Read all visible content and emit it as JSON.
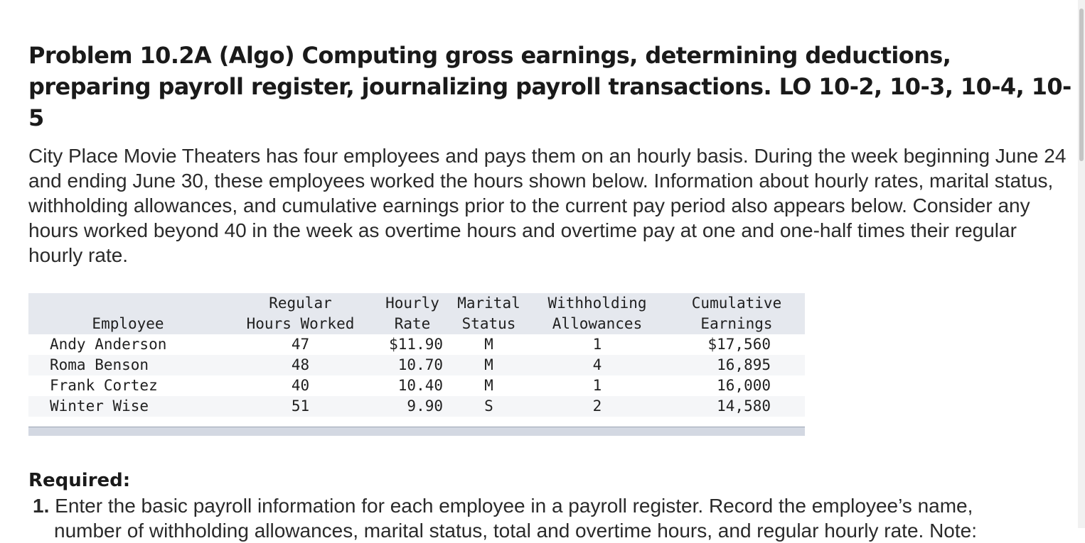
{
  "title_line1": "Problem 10.2A (Algo) Computing gross earnings, determining deductions,",
  "title_line2": "preparing payroll register, journalizing payroll transactions. LO 10-2, 10-3, 10-4, 10-5",
  "intro": "City Place Movie Theaters has four employees and pays them on an hourly basis. During the week beginning June 24 and ending June 30, these employees worked the hours shown below. Information about hourly rates, marital status, withholding allowances, and cumulative earnings prior to the current pay period also appears below. Consider any hours worked beyond 40 in the week as overtime hours and overtime pay at one and one-half times their regular hourly rate.",
  "table": {
    "headers": {
      "employee": "Employee",
      "hours_1": "Regular",
      "hours_2": "Hours Worked",
      "rate_1": "Hourly",
      "rate_2": "Rate",
      "marital_1": "Marital",
      "marital_2": "Status",
      "withholding_1": "Withholding",
      "withholding_2": "Allowances",
      "cumulative_1": "Cumulative",
      "cumulative_2": "Earnings"
    },
    "rows": [
      {
        "employee": "Andy Anderson",
        "hours": "47",
        "rate": "$11.90",
        "marital": "M",
        "allowances": "1",
        "cumulative": "$17,560"
      },
      {
        "employee": "Roma Benson",
        "hours": "48",
        "rate": "10.70",
        "marital": "M",
        "allowances": "4",
        "cumulative": "16,895"
      },
      {
        "employee": "Frank Cortez",
        "hours": "40",
        "rate": "10.40",
        "marital": "M",
        "allowances": "1",
        "cumulative": "16,000"
      },
      {
        "employee": "Winter Wise",
        "hours": "51",
        "rate": "9.90",
        "marital": "S",
        "allowances": "2",
        "cumulative": "14,580"
      }
    ]
  },
  "required_label": "Required:",
  "required_items": [
    {
      "number": "1.",
      "text": "Enter the basic payroll information for each employee in a payroll register. Record the employee’s name,",
      "text_cont": "number of withholding allowances, marital status, total and overtime hours, and regular hourly rate. Note:"
    }
  ]
}
